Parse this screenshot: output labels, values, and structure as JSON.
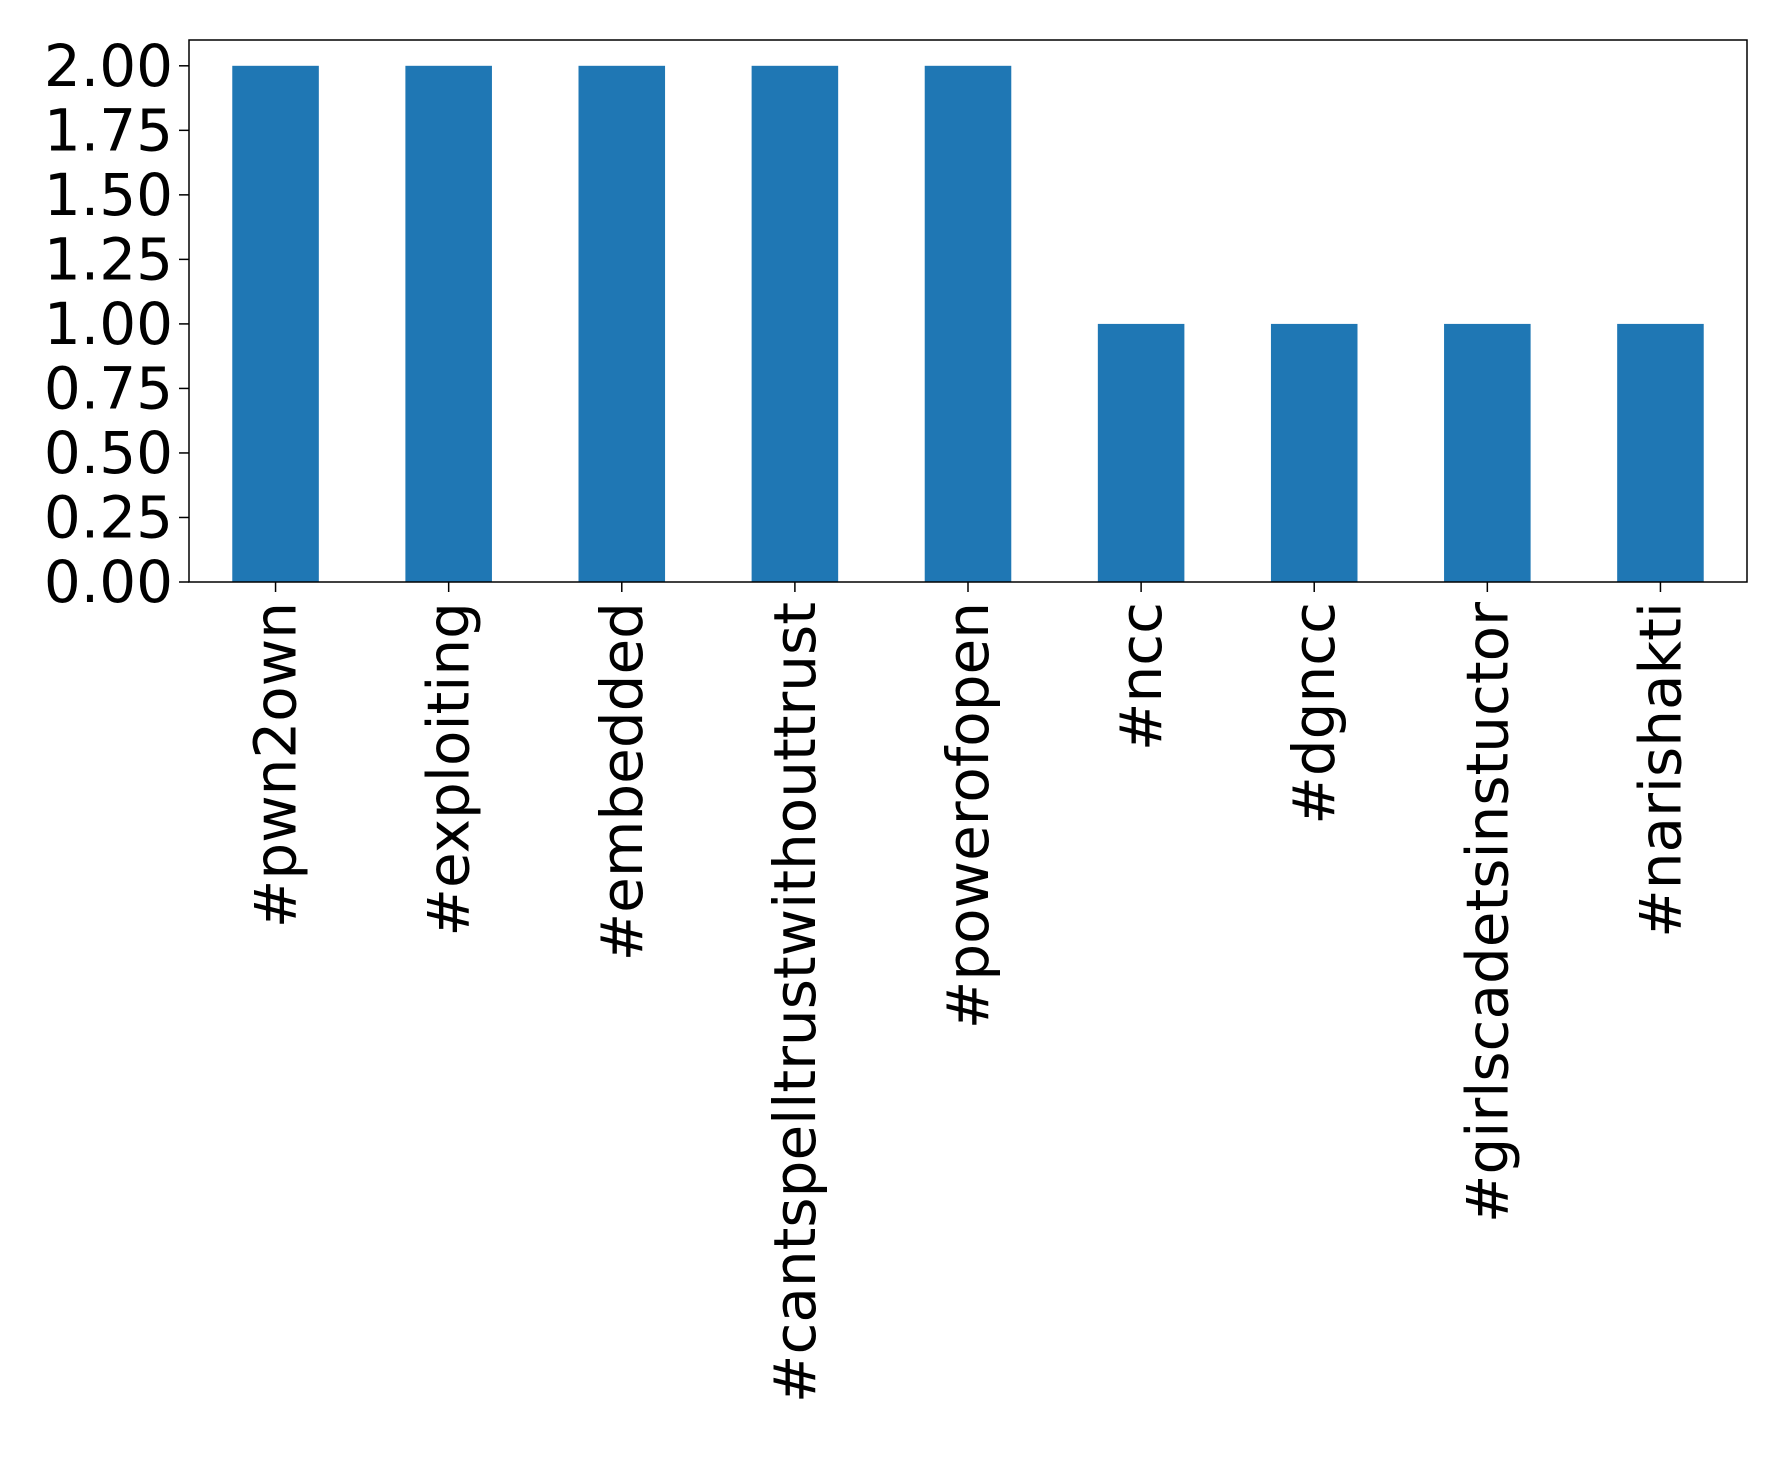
{
  "chart_data": {
    "type": "bar",
    "categories": [
      "#pwn2own",
      "#exploiting",
      "#embedded",
      "#cantspelltrustwithouttrust",
      "#powerofopen",
      "#ncc",
      "#dgncc",
      "#girlscadetsinstuctor",
      "#narishakti"
    ],
    "values": [
      2,
      2,
      2,
      2,
      2,
      1,
      1,
      1,
      1
    ],
    "title": "",
    "xlabel": "",
    "ylabel": "",
    "ylim": [
      0,
      2.1
    ],
    "yticks": [
      "0.00",
      "0.25",
      "0.50",
      "0.75",
      "1.00",
      "1.25",
      "1.50",
      "1.75",
      "2.00"
    ],
    "grid": false,
    "bar_color": "#1f77b4"
  }
}
